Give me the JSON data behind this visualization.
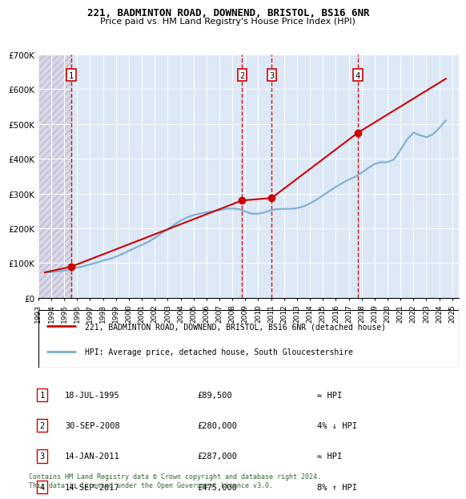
{
  "title": "221, BADMINTON ROAD, DOWNEND, BRISTOL, BS16 6NR",
  "subtitle": "Price paid vs. HM Land Registry's House Price Index (HPI)",
  "footer": "Contains HM Land Registry data © Crown copyright and database right 2024.\nThis data is licensed under the Open Government Licence v3.0.",
  "legend_line1": "221, BADMINTON ROAD, DOWNEND, BRISTOL, BS16 6NR (detached house)",
  "legend_line2": "HPI: Average price, detached house, South Gloucestershire",
  "transactions": [
    {
      "num": 1,
      "date": "18-JUL-1995",
      "price": 89500,
      "rel": "≈ HPI",
      "year": 1995.54
    },
    {
      "num": 2,
      "date": "30-SEP-2008",
      "price": 280000,
      "rel": "4% ↓ HPI",
      "year": 2008.75
    },
    {
      "num": 3,
      "date": "14-JAN-2011",
      "price": 287000,
      "rel": "≈ HPI",
      "year": 2011.04
    },
    {
      "num": 4,
      "date": "14-SEP-2017",
      "price": 475000,
      "rel": "8% ↑ HPI",
      "year": 2017.71
    }
  ],
  "hpi_color": "#7aafd4",
  "price_color": "#cc0000",
  "marker_color": "#cc0000",
  "transaction_line_color": "#cc0000",
  "bg_hatched_color": "#d8d8e8",
  "bg_main_color": "#dce8f5",
  "ylim": [
    0,
    700000
  ],
  "yticks": [
    0,
    100000,
    200000,
    300000,
    400000,
    500000,
    600000,
    700000
  ],
  "ytick_labels": [
    "£0",
    "£100K",
    "£200K",
    "£300K",
    "£400K",
    "£500K",
    "£600K",
    "£700K"
  ],
  "xlim_start": 1993.0,
  "xlim_end": 2025.5,
  "hpi_years": [
    1993.5,
    1994.0,
    1994.5,
    1995.0,
    1995.5,
    1996.0,
    1996.5,
    1997.0,
    1997.5,
    1998.0,
    1998.5,
    1999.0,
    1999.5,
    2000.0,
    2000.5,
    2001.0,
    2001.5,
    2002.0,
    2002.5,
    2003.0,
    2003.5,
    2004.0,
    2004.5,
    2005.0,
    2005.5,
    2006.0,
    2006.5,
    2007.0,
    2007.5,
    2008.0,
    2008.5,
    2009.0,
    2009.5,
    2010.0,
    2010.5,
    2011.0,
    2011.5,
    2012.0,
    2012.5,
    2013.0,
    2013.5,
    2014.0,
    2014.5,
    2015.0,
    2015.5,
    2016.0,
    2016.5,
    2017.0,
    2017.5,
    2018.0,
    2018.5,
    2019.0,
    2019.5,
    2020.0,
    2020.5,
    2021.0,
    2021.5,
    2022.0,
    2022.5,
    2023.0,
    2023.5,
    2024.0,
    2024.5
  ],
  "hpi_values": [
    73000,
    74000,
    76000,
    78000,
    82000,
    87000,
    91000,
    96000,
    101000,
    107000,
    112000,
    118000,
    126000,
    135000,
    144000,
    152000,
    161000,
    172000,
    185000,
    197000,
    210000,
    222000,
    231000,
    238000,
    242000,
    246000,
    249000,
    252000,
    256000,
    257000,
    255000,
    248000,
    242000,
    242000,
    246000,
    252000,
    255000,
    256000,
    256000,
    258000,
    263000,
    271000,
    282000,
    294000,
    307000,
    319000,
    330000,
    340000,
    348000,
    360000,
    373000,
    385000,
    390000,
    390000,
    398000,
    425000,
    455000,
    475000,
    468000,
    462000,
    470000,
    488000,
    510000
  ],
  "price_years": [
    1993.5,
    1995.54,
    2008.75,
    2011.04,
    2017.71,
    2024.5
  ],
  "price_values": [
    73000,
    89500,
    280000,
    287000,
    475000,
    630000
  ],
  "xtick_years": [
    1993,
    1994,
    1995,
    1996,
    1997,
    1998,
    1999,
    2000,
    2001,
    2002,
    2003,
    2004,
    2005,
    2006,
    2007,
    2008,
    2009,
    2010,
    2011,
    2012,
    2013,
    2014,
    2015,
    2016,
    2017,
    2018,
    2019,
    2020,
    2021,
    2022,
    2023,
    2024,
    2025
  ]
}
